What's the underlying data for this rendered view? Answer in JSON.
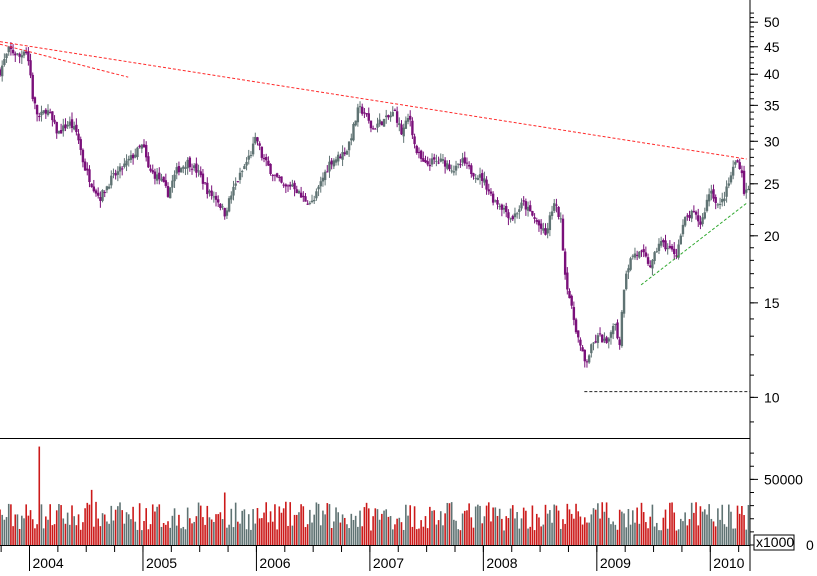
{
  "chart_data": [
    {
      "type": "candlestick",
      "scale": "log",
      "ylim": [
        8.4,
        55
      ],
      "yticks": [
        10,
        15,
        20,
        25,
        30,
        35,
        40,
        45,
        50
      ],
      "ytick_labels": [
        "10",
        "15",
        "20",
        "25",
        "30",
        "35",
        "40",
        "45",
        "50"
      ],
      "x_start": 2003.74,
      "x_end": 2010.35,
      "x_tick_labels": [
        {
          "x": 2004.0,
          "label": "2004"
        },
        {
          "x": 2005.0,
          "label": "2005"
        },
        {
          "x": 2006.0,
          "label": "2006"
        },
        {
          "x": 2007.0,
          "label": "2007"
        },
        {
          "x": 2008.0,
          "label": "2008"
        },
        {
          "x": 2009.0,
          "label": "2009"
        },
        {
          "x": 2010.0,
          "label": "2010"
        }
      ],
      "up_color": "#5f7373",
      "down_color": "#7a107a",
      "close_path": [
        [
          2003.74,
          40.5
        ],
        [
          2003.82,
          44.5
        ],
        [
          2003.92,
          43.0
        ],
        [
          2003.96,
          45.0
        ],
        [
          2004.0,
          41.5
        ],
        [
          2004.03,
          36.0
        ],
        [
          2004.08,
          33.0
        ],
        [
          2004.15,
          34.5
        ],
        [
          2004.25,
          31.0
        ],
        [
          2004.35,
          32.5
        ],
        [
          2004.42,
          31.0
        ],
        [
          2004.48,
          27.0
        ],
        [
          2004.55,
          25.0
        ],
        [
          2004.62,
          23.5
        ],
        [
          2004.72,
          25.5
        ],
        [
          2004.8,
          26.5
        ],
        [
          2004.9,
          28.0
        ],
        [
          2005.0,
          29.5
        ],
        [
          2005.05,
          26.5
        ],
        [
          2005.15,
          25.5
        ],
        [
          2005.22,
          24.0
        ],
        [
          2005.3,
          26.5
        ],
        [
          2005.4,
          27.5
        ],
        [
          2005.5,
          26.0
        ],
        [
          2005.58,
          24.0
        ],
        [
          2005.65,
          23.5
        ],
        [
          2005.72,
          22.0
        ],
        [
          2005.8,
          24.5
        ],
        [
          2005.88,
          26.5
        ],
        [
          2005.95,
          28.5
        ],
        [
          2006.0,
          30.5
        ],
        [
          2006.05,
          28.0
        ],
        [
          2006.15,
          26.0
        ],
        [
          2006.25,
          24.5
        ],
        [
          2006.32,
          25.0
        ],
        [
          2006.4,
          23.5
        ],
        [
          2006.5,
          23.0
        ],
        [
          2006.58,
          25.5
        ],
        [
          2006.65,
          27.5
        ],
        [
          2006.72,
          28.0
        ],
        [
          2006.8,
          29.0
        ],
        [
          2006.85,
          31.5
        ],
        [
          2006.9,
          34.5
        ],
        [
          2006.95,
          34.0
        ],
        [
          2007.02,
          31.5
        ],
        [
          2007.08,
          32.5
        ],
        [
          2007.15,
          33.0
        ],
        [
          2007.22,
          34.0
        ],
        [
          2007.28,
          31.0
        ],
        [
          2007.35,
          33.5
        ],
        [
          2007.4,
          29.0
        ],
        [
          2007.48,
          27.0
        ],
        [
          2007.55,
          27.5
        ],
        [
          2007.65,
          27.5
        ],
        [
          2007.75,
          26.5
        ],
        [
          2007.82,
          27.5
        ],
        [
          2007.88,
          26.5
        ],
        [
          2008.0,
          25.5
        ],
        [
          2008.08,
          23.5
        ],
        [
          2008.18,
          22.5
        ],
        [
          2008.25,
          21.5
        ],
        [
          2008.35,
          23.0
        ],
        [
          2008.45,
          21.5
        ],
        [
          2008.55,
          20.0
        ],
        [
          2008.62,
          23.0
        ],
        [
          2008.68,
          21.5
        ],
        [
          2008.72,
          17.0
        ],
        [
          2008.78,
          14.5
        ],
        [
          2008.85,
          12.5
        ],
        [
          2008.9,
          11.5
        ],
        [
          2008.96,
          12.5
        ],
        [
          2009.02,
          13.0
        ],
        [
          2009.1,
          12.5
        ],
        [
          2009.15,
          14.0
        ],
        [
          2009.2,
          12.5
        ],
        [
          2009.25,
          17.0
        ],
        [
          2009.32,
          18.5
        ],
        [
          2009.4,
          18.5
        ],
        [
          2009.48,
          17.5
        ],
        [
          2009.55,
          19.5
        ],
        [
          2009.62,
          19.0
        ],
        [
          2009.7,
          18.5
        ],
        [
          2009.78,
          21.5
        ],
        [
          2009.85,
          22.0
        ],
        [
          2009.92,
          21.0
        ],
        [
          2010.0,
          24.5
        ],
        [
          2010.08,
          22.5
        ],
        [
          2010.15,
          24.5
        ],
        [
          2010.22,
          27.5
        ],
        [
          2010.27,
          27.0
        ],
        [
          2010.3,
          24.0
        ],
        [
          2010.35,
          24.5
        ]
      ],
      "trendlines": [
        {
          "name": "resistance",
          "color": "#ff2a2a",
          "points": [
            [
              2003.74,
              46.0
            ],
            [
              2010.32,
              27.8
            ]
          ]
        },
        {
          "name": "early-fan",
          "color": "#ff2a2a",
          "points": [
            [
              2003.74,
              45.5
            ],
            [
              2004.87,
              39.5
            ]
          ]
        },
        {
          "name": "support",
          "color": "#33aa33",
          "points": [
            [
              2009.39,
              16.2
            ],
            [
              2010.32,
              23.0
            ]
          ]
        },
        {
          "name": "low-line",
          "color": "#222222",
          "points": [
            [
              2008.89,
              10.25
            ],
            [
              2010.35,
              10.25
            ]
          ]
        }
      ]
    },
    {
      "type": "bar",
      "ylim": [
        0,
        80000
      ],
      "yticks": [
        0,
        50000
      ],
      "ytick_labels": [
        "0",
        "50000"
      ],
      "unit_label": "x1000",
      "up_color": "#5f7373",
      "down_color": "#cc1a1a",
      "baseline_volume": 20000,
      "spikes": [
        {
          "x": 2004.08,
          "value": 75000
        },
        {
          "x": 2004.55,
          "value": 42000
        },
        {
          "x": 2005.72,
          "value": 40000
        }
      ]
    }
  ]
}
